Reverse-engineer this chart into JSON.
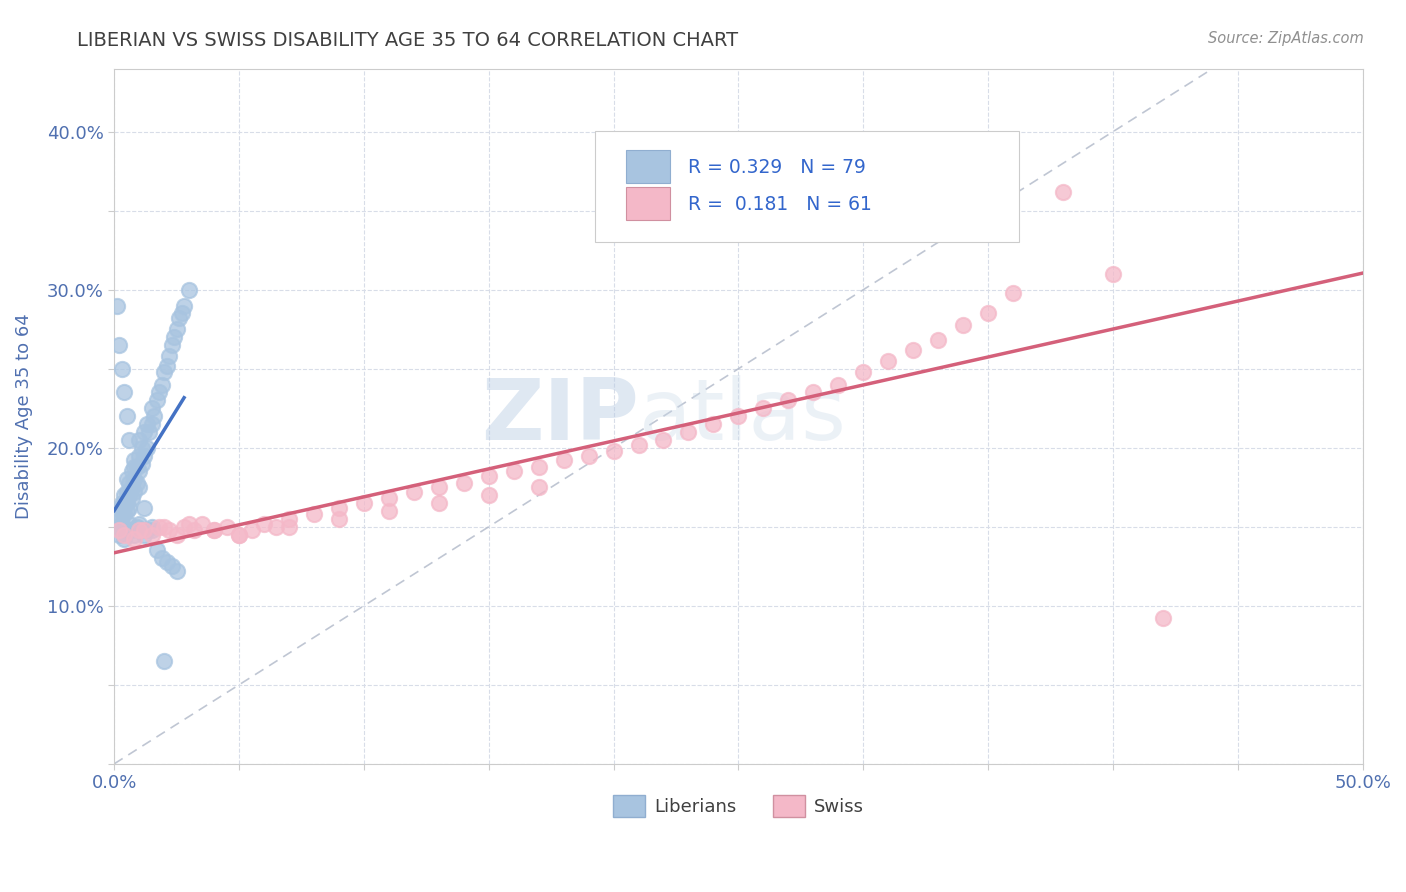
{
  "title": "LIBERIAN VS SWISS DISABILITY AGE 35 TO 64 CORRELATION CHART",
  "source": "Source: ZipAtlas.com",
  "ylabel": "Disability Age 35 to 64",
  "xlim": [
    0.0,
    0.5
  ],
  "ylim": [
    0.0,
    0.44
  ],
  "liberian_R": 0.329,
  "liberian_N": 79,
  "swiss_R": 0.181,
  "swiss_N": 61,
  "liberian_color": "#a8c4e0",
  "liberian_line_color": "#4472c4",
  "swiss_color": "#f4b8c8",
  "swiss_line_color": "#d4607a",
  "diag_line_color": "#b0b8c8",
  "watermark_zip": "ZIP",
  "watermark_atlas": "atlas",
  "background_color": "#ffffff",
  "grid_color": "#d8dde8",
  "title_color": "#404040",
  "axis_label_color": "#5070b0",
  "tick_label_color": "#5070b0",
  "legend_color": "#3366cc",
  "liberian_x": [
    0.001,
    0.002,
    0.002,
    0.003,
    0.003,
    0.003,
    0.004,
    0.004,
    0.004,
    0.005,
    0.005,
    0.005,
    0.005,
    0.006,
    0.006,
    0.006,
    0.007,
    0.007,
    0.007,
    0.008,
    0.008,
    0.008,
    0.009,
    0.009,
    0.01,
    0.01,
    0.01,
    0.011,
    0.011,
    0.012,
    0.012,
    0.013,
    0.013,
    0.014,
    0.015,
    0.015,
    0.016,
    0.017,
    0.018,
    0.019,
    0.02,
    0.021,
    0.022,
    0.023,
    0.024,
    0.025,
    0.026,
    0.027,
    0.028,
    0.03,
    0.002,
    0.003,
    0.004,
    0.005,
    0.006,
    0.007,
    0.008,
    0.009,
    0.01,
    0.011,
    0.012,
    0.013,
    0.015,
    0.017,
    0.019,
    0.021,
    0.023,
    0.025,
    0.001,
    0.002,
    0.003,
    0.004,
    0.005,
    0.006,
    0.008,
    0.01,
    0.012,
    0.015,
    0.02
  ],
  "liberian_y": [
    0.155,
    0.15,
    0.158,
    0.152,
    0.16,
    0.165,
    0.158,
    0.165,
    0.17,
    0.16,
    0.165,
    0.172,
    0.18,
    0.162,
    0.17,
    0.178,
    0.168,
    0.175,
    0.185,
    0.172,
    0.18,
    0.192,
    0.178,
    0.188,
    0.185,
    0.195,
    0.205,
    0.19,
    0.2,
    0.195,
    0.21,
    0.2,
    0.215,
    0.21,
    0.215,
    0.225,
    0.22,
    0.23,
    0.235,
    0.24,
    0.248,
    0.252,
    0.258,
    0.265,
    0.27,
    0.275,
    0.282,
    0.285,
    0.29,
    0.3,
    0.145,
    0.148,
    0.142,
    0.148,
    0.152,
    0.148,
    0.145,
    0.15,
    0.152,
    0.148,
    0.145,
    0.148,
    0.15,
    0.135,
    0.13,
    0.128,
    0.125,
    0.122,
    0.29,
    0.265,
    0.25,
    0.235,
    0.22,
    0.205,
    0.188,
    0.175,
    0.162,
    0.148,
    0.065
  ],
  "swiss_x": [
    0.002,
    0.004,
    0.008,
    0.012,
    0.015,
    0.018,
    0.022,
    0.025,
    0.028,
    0.032,
    0.035,
    0.04,
    0.045,
    0.05,
    0.055,
    0.06,
    0.065,
    0.07,
    0.08,
    0.09,
    0.1,
    0.11,
    0.12,
    0.13,
    0.14,
    0.15,
    0.16,
    0.17,
    0.18,
    0.19,
    0.2,
    0.21,
    0.22,
    0.23,
    0.24,
    0.25,
    0.26,
    0.27,
    0.28,
    0.29,
    0.3,
    0.31,
    0.32,
    0.33,
    0.34,
    0.35,
    0.36,
    0.38,
    0.4,
    0.42,
    0.01,
    0.02,
    0.03,
    0.04,
    0.05,
    0.07,
    0.09,
    0.11,
    0.13,
    0.15,
    0.17
  ],
  "swiss_y": [
    0.148,
    0.145,
    0.142,
    0.148,
    0.145,
    0.15,
    0.148,
    0.145,
    0.15,
    0.148,
    0.152,
    0.148,
    0.15,
    0.145,
    0.148,
    0.152,
    0.15,
    0.155,
    0.158,
    0.162,
    0.165,
    0.168,
    0.172,
    0.175,
    0.178,
    0.182,
    0.185,
    0.188,
    0.192,
    0.195,
    0.198,
    0.202,
    0.205,
    0.21,
    0.215,
    0.22,
    0.225,
    0.23,
    0.235,
    0.24,
    0.248,
    0.255,
    0.262,
    0.268,
    0.278,
    0.285,
    0.298,
    0.362,
    0.31,
    0.092,
    0.148,
    0.15,
    0.152,
    0.148,
    0.145,
    0.15,
    0.155,
    0.16,
    0.165,
    0.17,
    0.175
  ]
}
